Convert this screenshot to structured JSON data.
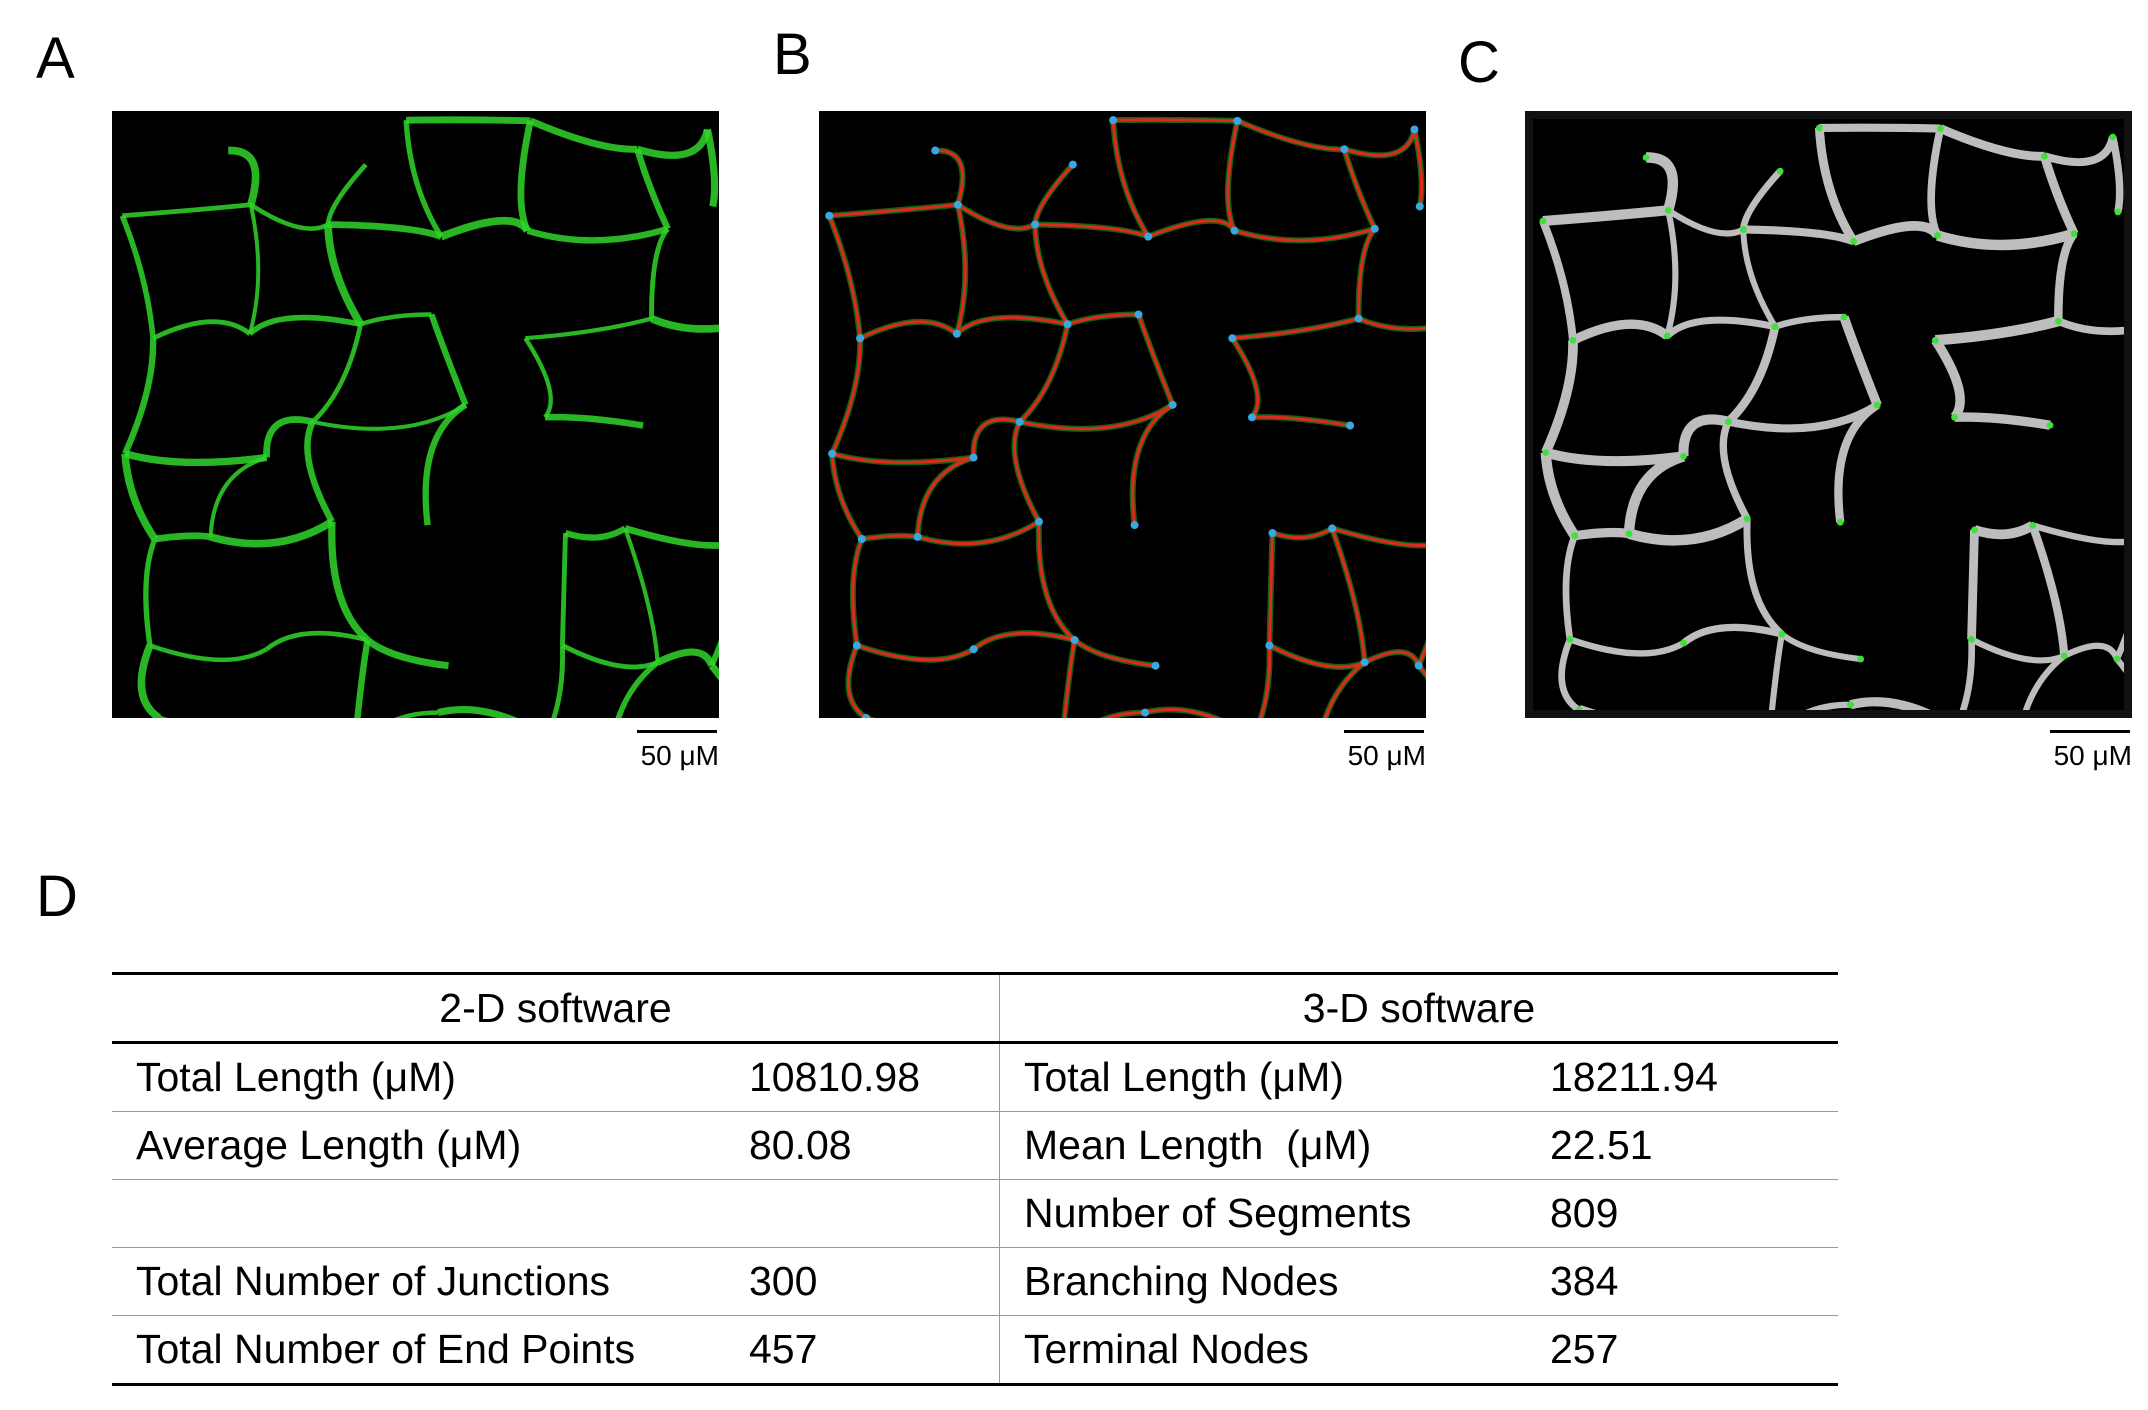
{
  "panels": [
    {
      "label": "A",
      "scale_bar": "50 μM"
    },
    {
      "label": "B",
      "scale_bar": "50 μM"
    },
    {
      "label": "C",
      "scale_bar": "50 μM"
    }
  ],
  "table": {
    "label": "D",
    "header": [
      "2-D software",
      "3-D software"
    ],
    "rows": [
      {
        "left": [
          "Total Length (μM)",
          10810.98
        ],
        "right": [
          "Total Length (μM)",
          18211.94
        ]
      },
      {
        "left": [
          "Average Length (μM)",
          80.08
        ],
        "right": [
          "Mean Length  (μM)",
          22.51
        ]
      },
      {
        "right": [
          "Number of Segments",
          809
        ]
      },
      {
        "left": [
          "Total Number of Junctions",
          300
        ],
        "right": [
          "Branching Nodes",
          384
        ]
      },
      {
        "left": [
          "Total Number of End Points",
          457
        ],
        "right": [
          "Terminal Nodes",
          257
        ]
      }
    ]
  }
}
